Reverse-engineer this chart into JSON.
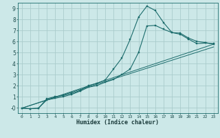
{
  "title": "",
  "xlabel": "Humidex (Indice chaleur)",
  "bg_color": "#cce8e8",
  "grid_color": "#aacccc",
  "line_color": "#1a6b6b",
  "xlim": [
    -0.5,
    23.5
  ],
  "ylim": [
    -0.5,
    9.5
  ],
  "xticks": [
    0,
    1,
    2,
    3,
    4,
    5,
    6,
    7,
    8,
    9,
    10,
    11,
    12,
    13,
    14,
    15,
    16,
    17,
    18,
    19,
    20,
    21,
    22,
    23
  ],
  "yticks": [
    0,
    1,
    2,
    3,
    4,
    5,
    6,
    7,
    8,
    9
  ],
  "line1_x": [
    0,
    1,
    2,
    3,
    4,
    5,
    6,
    7,
    8,
    9,
    10,
    11,
    12,
    13,
    14,
    15,
    16,
    17,
    18,
    19,
    20,
    21,
    22,
    23
  ],
  "line1_y": [
    -0.05,
    -0.1,
    -0.05,
    0.8,
    1.0,
    1.1,
    1.3,
    1.55,
    2.0,
    2.2,
    2.5,
    3.5,
    4.5,
    6.2,
    8.2,
    9.2,
    8.8,
    7.7,
    6.8,
    6.65,
    6.2,
    5.8,
    5.85,
    5.8
  ],
  "line2_x": [
    0,
    1,
    2,
    3,
    4,
    5,
    6,
    7,
    8,
    9,
    10,
    11,
    12,
    13,
    14,
    15,
    16,
    17,
    18,
    19,
    20,
    21,
    22,
    23
  ],
  "line2_y": [
    -0.05,
    -0.1,
    -0.05,
    0.7,
    0.85,
    1.0,
    1.2,
    1.5,
    1.85,
    2.0,
    2.3,
    2.55,
    3.0,
    3.5,
    5.0,
    7.4,
    7.45,
    7.1,
    6.8,
    6.75,
    6.3,
    6.0,
    5.9,
    5.75
  ],
  "line3_x": [
    0,
    23
  ],
  "line3_y": [
    -0.05,
    5.75
  ],
  "line4_x": [
    0,
    23
  ],
  "line4_y": [
    -0.05,
    5.5
  ]
}
